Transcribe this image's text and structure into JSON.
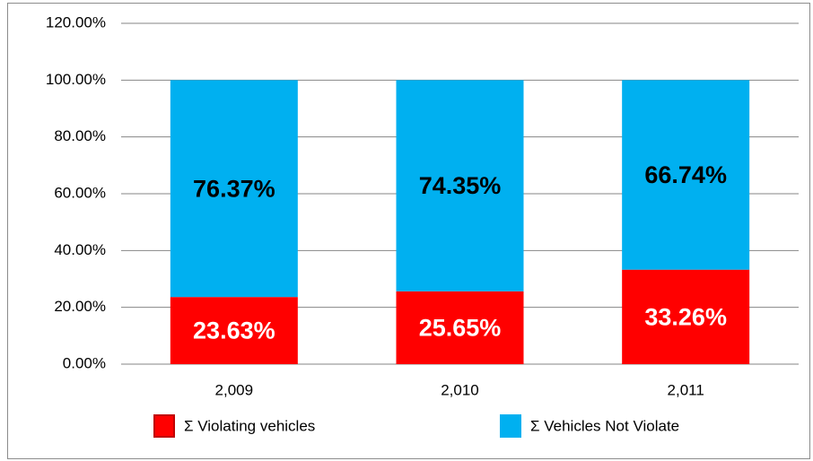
{
  "chart_data": {
    "type": "stacked_bar",
    "categories": [
      "2,009",
      "2,010",
      "2,011"
    ],
    "series": [
      {
        "name": "Σ Violating vehicles",
        "color": "#ff0000",
        "label_color": "#ffffff",
        "values": [
          23.63,
          25.65,
          33.26
        ],
        "value_labels": [
          "23.63%",
          "25.65%",
          "33.26%"
        ]
      },
      {
        "name": "Σ Vehicles Not Violate",
        "color": "#00b0f0",
        "label_color": "#000000",
        "values": [
          76.37,
          74.35,
          66.74
        ],
        "value_labels": [
          "76.37%",
          "74.35%",
          "66.74%"
        ]
      }
    ],
    "ylim": [
      0,
      120
    ],
    "yticks": [
      {
        "value": 0,
        "label": "0.00%"
      },
      {
        "value": 20,
        "label": "20.00%"
      },
      {
        "value": 40,
        "label": "40.00%"
      },
      {
        "value": 60,
        "label": "60.00%"
      },
      {
        "value": 80,
        "label": "80.00%"
      },
      {
        "value": 100,
        "label": "100.00%"
      },
      {
        "value": 120,
        "label": "120.00%"
      }
    ],
    "grid": true,
    "legend": "bottom"
  }
}
